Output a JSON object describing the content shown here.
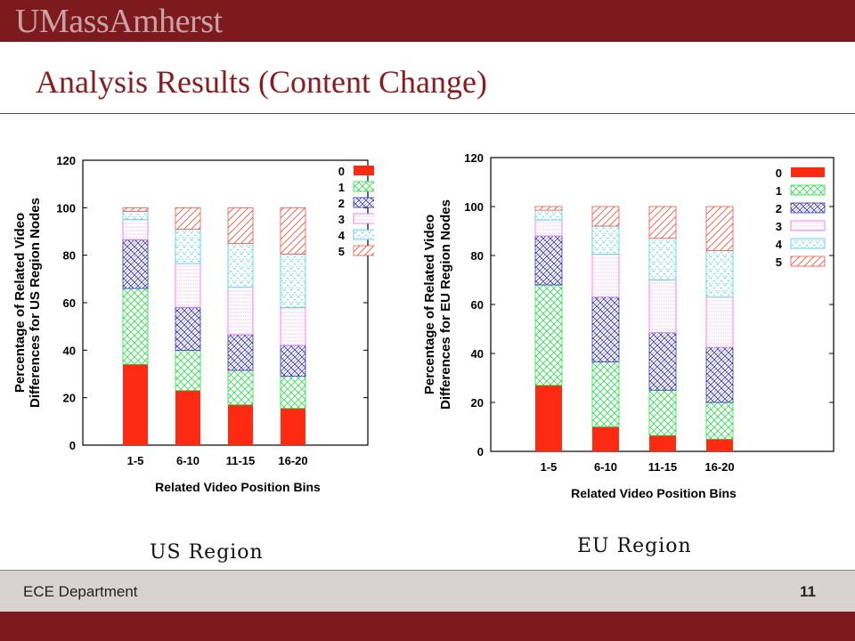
{
  "header": {
    "logo_text": "UMassAmherst"
  },
  "slide": {
    "title": "Analysis Results (Content Change)"
  },
  "captions": {
    "us": "US Region",
    "eu": "EU Region"
  },
  "footer": {
    "department": "ECE Department",
    "page_number": "11"
  },
  "legend_colors": {
    "0": "#ff2a12",
    "1": "#22dd44",
    "2": "#3333bb",
    "3": "#ee66ee",
    "4": "#44ccee",
    "5": "#ee5544"
  },
  "chart_data": [
    {
      "type": "bar",
      "stacked": true,
      "xlabel": "Related Video Position Bins",
      "ylabel": "Percentage of Related Video Differences for US Region Nodes",
      "ylim": [
        0,
        120
      ],
      "yticks": [
        0,
        20,
        40,
        60,
        80,
        100,
        120
      ],
      "categories": [
        "1-5",
        "6-10",
        "11-15",
        "16-20"
      ],
      "legend_position": "top-right",
      "series": [
        {
          "name": "0",
          "values": [
            34,
            23,
            17,
            15.5
          ]
        },
        {
          "name": "1",
          "values": [
            32,
            17,
            14.5,
            13.5
          ]
        },
        {
          "name": "2",
          "values": [
            20.5,
            18,
            15,
            13
          ]
        },
        {
          "name": "3",
          "values": [
            8.5,
            18.5,
            20,
            16
          ]
        },
        {
          "name": "4",
          "values": [
            3.5,
            14.5,
            18.5,
            22.5
          ]
        },
        {
          "name": "5",
          "values": [
            1.5,
            9,
            15,
            19.5
          ]
        }
      ]
    },
    {
      "type": "bar",
      "stacked": true,
      "xlabel": "Related Video Position Bins",
      "ylabel": "Percentage of Related Video Differences for EU Region Nodes",
      "ylim": [
        0,
        120
      ],
      "yticks": [
        0,
        20,
        40,
        60,
        80,
        100,
        120
      ],
      "categories": [
        "1-5",
        "6-10",
        "11-15",
        "16-20"
      ],
      "legend_position": "top-right",
      "series": [
        {
          "name": "0",
          "values": [
            27,
            10,
            6.5,
            5
          ]
        },
        {
          "name": "1",
          "values": [
            41,
            26.5,
            18.5,
            15
          ]
        },
        {
          "name": "2",
          "values": [
            20,
            26.5,
            23.5,
            22.5
          ]
        },
        {
          "name": "3",
          "values": [
            6.5,
            17.5,
            21.5,
            20.5
          ]
        },
        {
          "name": "4",
          "values": [
            4,
            11.5,
            17,
            19
          ]
        },
        {
          "name": "5",
          "values": [
            1.5,
            8,
            13,
            18
          ]
        }
      ]
    }
  ]
}
